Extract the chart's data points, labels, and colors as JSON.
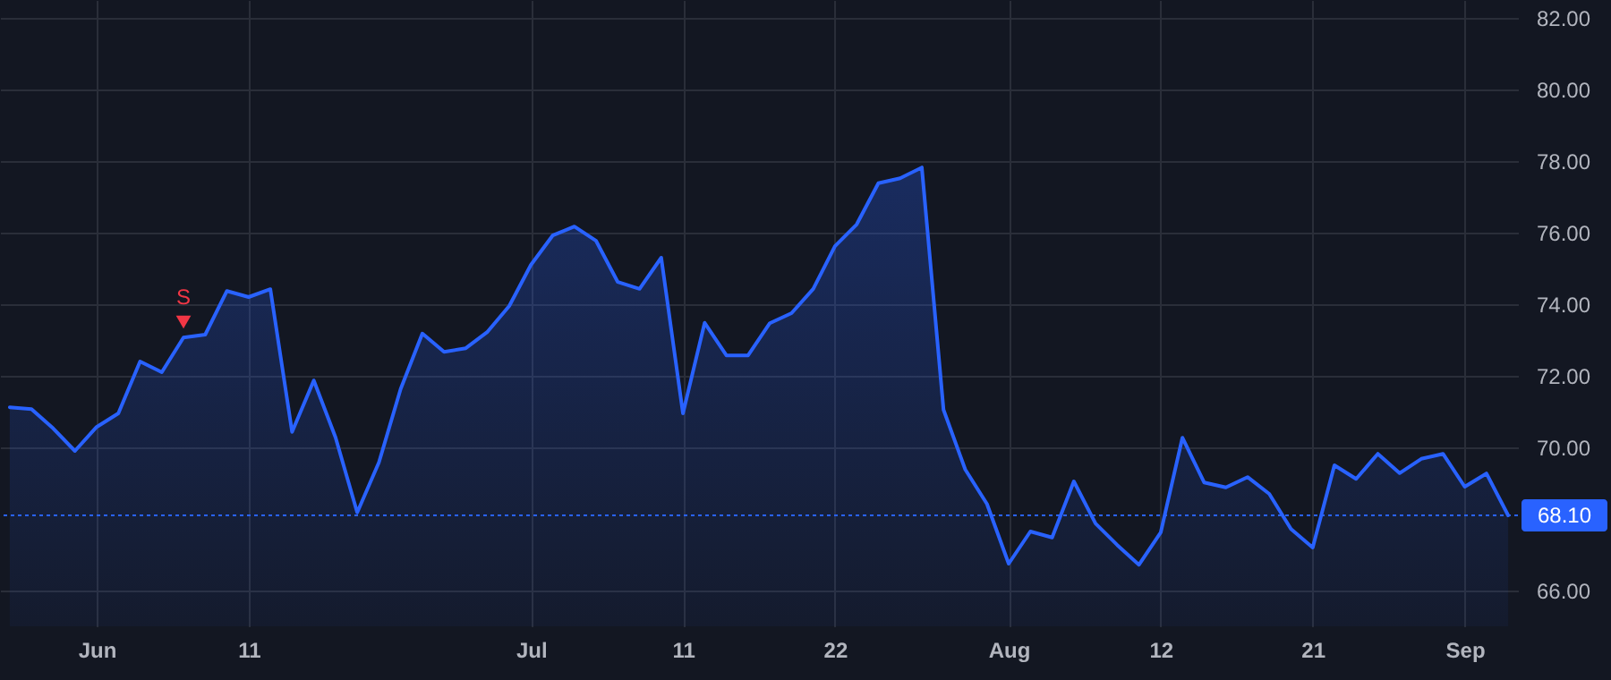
{
  "chart_data": {
    "type": "area",
    "categories": [
      null,
      null,
      null,
      null,
      "Jun",
      null,
      null,
      null,
      null,
      null,
      null,
      "11",
      null,
      null,
      null,
      null,
      null,
      null,
      null,
      null,
      null,
      null,
      null,
      null,
      "Jul",
      null,
      null,
      null,
      null,
      null,
      null,
      "11",
      null,
      null,
      null,
      null,
      null,
      null,
      "22",
      null,
      null,
      null,
      null,
      null,
      null,
      null,
      "Aug",
      null,
      null,
      null,
      null,
      null,
      null,
      "12",
      null,
      null,
      null,
      null,
      null,
      null,
      "21",
      null,
      null,
      null,
      null,
      null,
      null,
      "Sep",
      null,
      null
    ],
    "series": [
      {
        "color": "#2962ff",
        "marker": "none",
        "line_style": "solid",
        "values": [
          71.12,
          71.07,
          70.53,
          69.9,
          70.57,
          70.95,
          72.4,
          72.1,
          73.07,
          73.15,
          74.37,
          74.2,
          74.42,
          70.43,
          71.87,
          70.28,
          68.18,
          69.58,
          71.63,
          73.18,
          72.67,
          72.77,
          73.23,
          73.95,
          75.1,
          75.92,
          76.17,
          75.77,
          74.62,
          74.43,
          75.3,
          70.95,
          73.48,
          72.57,
          72.57,
          73.47,
          73.75,
          74.43,
          75.62,
          76.23,
          77.38,
          77.52,
          77.82,
          71.05,
          69.38,
          68.42,
          66.75,
          67.65,
          67.48,
          69.05,
          67.87,
          67.27,
          66.72,
          67.62,
          70.27,
          69.02,
          68.88,
          69.17,
          68.7,
          67.72,
          67.2,
          69.5,
          69.12,
          69.82,
          69.28,
          69.68,
          69.82,
          68.9,
          69.27,
          68.1
        ]
      },
      {
        "type": "scatter",
        "color": "#f23645",
        "marker": "triangle",
        "values": [
          null,
          null,
          null,
          null,
          null,
          null,
          null,
          null,
          73.5,
          null,
          null,
          null,
          null,
          null,
          null,
          null,
          null,
          null,
          null,
          null,
          null,
          null,
          null,
          null,
          null,
          null,
          null,
          null,
          null,
          null,
          null,
          null,
          null,
          null,
          null,
          null,
          null,
          null,
          null,
          null,
          null,
          null,
          null,
          null,
          null,
          null,
          null,
          null,
          null,
          null,
          null,
          null,
          null,
          null,
          null,
          null,
          null,
          null,
          null,
          null,
          null,
          null,
          null,
          null,
          null,
          null,
          null,
          null,
          null,
          null
        ]
      }
    ],
    "annotations": [
      "S"
    ],
    "ylim": [
      65,
      82.5
    ],
    "yticks": [
      {
        "value": 66,
        "label": "66.00"
      },
      {
        "value": 70,
        "label": "70.00"
      },
      {
        "value": 72,
        "label": "72.00"
      },
      {
        "value": 74,
        "label": "74.00"
      },
      {
        "value": 76,
        "label": "76.00"
      },
      {
        "value": 78,
        "label": "78.00"
      },
      {
        "value": 80,
        "label": "80.00"
      },
      {
        "value": 82,
        "label": "82.00"
      }
    ],
    "ref_lines": [
      {
        "axis": "y",
        "value": 68.1,
        "label": "68.10",
        "color": "#2962ff",
        "line_style": "dotted"
      }
    ],
    "grid": true
  }
}
